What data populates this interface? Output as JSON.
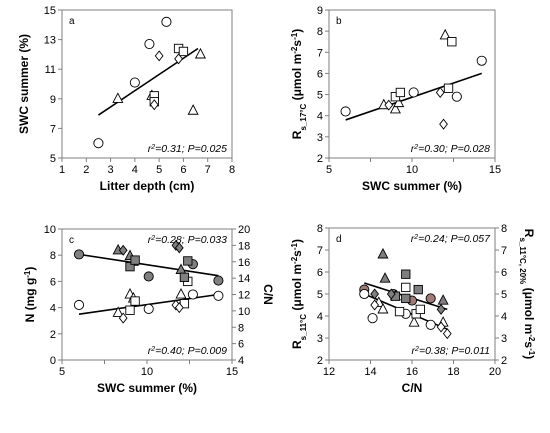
{
  "chart_data": [
    {
      "panel": "a",
      "type": "scatter",
      "xlabel": "Litter depth (cm)",
      "ylabel": "SWC summer (%)",
      "xlim": [
        1,
        8
      ],
      "ylim": [
        5,
        15
      ],
      "xticks": [
        1,
        2,
        3,
        4,
        5,
        6,
        7,
        8
      ],
      "yticks": [
        5,
        7,
        9,
        11,
        13,
        15
      ],
      "annotation": "r2=0.31; P=0.025",
      "annotation_pos": "bottom-right",
      "points": [
        {
          "x": 2.5,
          "y": 6.0,
          "marker": "circle"
        },
        {
          "x": 4.0,
          "y": 10.1,
          "marker": "circle"
        },
        {
          "x": 4.6,
          "y": 12.7,
          "marker": "circle"
        },
        {
          "x": 5.3,
          "y": 14.2,
          "marker": "circle"
        },
        {
          "x": 3.3,
          "y": 9.0,
          "marker": "triangle"
        },
        {
          "x": 6.4,
          "y": 8.2,
          "marker": "triangle"
        },
        {
          "x": 6.7,
          "y": 12.0,
          "marker": "triangle"
        },
        {
          "x": 4.7,
          "y": 9.2,
          "marker": "triangle"
        },
        {
          "x": 4.8,
          "y": 9.2,
          "marker": "square"
        },
        {
          "x": 4.8,
          "y": 8.8,
          "marker": "square"
        },
        {
          "x": 5.8,
          "y": 12.4,
          "marker": "square"
        },
        {
          "x": 6.0,
          "y": 12.2,
          "marker": "square"
        },
        {
          "x": 4.8,
          "y": 8.6,
          "marker": "diamond"
        },
        {
          "x": 5.0,
          "y": 11.9,
          "marker": "diamond"
        },
        {
          "x": 5.8,
          "y": 11.7,
          "marker": "diamond"
        }
      ],
      "trendlines": [
        {
          "x": [
            2.5,
            6.6
          ],
          "y": [
            7.9,
            12.4
          ]
        }
      ]
    },
    {
      "panel": "b",
      "type": "scatter",
      "xlabel": "SWC summer (%)",
      "ylabel": "Rs_17°C (μmol m-2s-1)",
      "ylabel_main": "R",
      "ylabel_sub": "s_17°C",
      "ylabel_unit": "(μmol m",
      "ylabel_sup1": "-2",
      "ylabel_mid": "s",
      "ylabel_sup2": "-1",
      "ylabel_end": ")",
      "xlim": [
        5,
        15
      ],
      "ylim": [
        2,
        9
      ],
      "xticks": [
        5,
        7.5,
        10,
        12.5,
        15
      ],
      "xtick_labels": [
        "5",
        "",
        "10",
        "",
        "15"
      ],
      "xtick_labels_real": [
        "5",
        "10",
        "15"
      ],
      "yticks": [
        2,
        3,
        4,
        5,
        6,
        7,
        8,
        9
      ],
      "annotation": "r2=0.30; P=0.028",
      "annotation_pos": "bottom-right",
      "points": [
        {
          "x": 6.0,
          "y": 4.2,
          "marker": "circle"
        },
        {
          "x": 10.1,
          "y": 5.1,
          "marker": "circle"
        },
        {
          "x": 12.7,
          "y": 4.9,
          "marker": "circle"
        },
        {
          "x": 14.2,
          "y": 6.6,
          "marker": "circle"
        },
        {
          "x": 8.3,
          "y": 4.5,
          "marker": "triangle"
        },
        {
          "x": 9.0,
          "y": 4.3,
          "marker": "triangle"
        },
        {
          "x": 9.2,
          "y": 4.6,
          "marker": "triangle"
        },
        {
          "x": 12.0,
          "y": 7.8,
          "marker": "triangle"
        },
        {
          "x": 9.0,
          "y": 4.9,
          "marker": "square"
        },
        {
          "x": 9.3,
          "y": 5.1,
          "marker": "square"
        },
        {
          "x": 12.2,
          "y": 5.3,
          "marker": "square"
        },
        {
          "x": 12.4,
          "y": 7.5,
          "marker": "square"
        },
        {
          "x": 8.6,
          "y": 4.5,
          "marker": "diamond"
        },
        {
          "x": 11.7,
          "y": 5.1,
          "marker": "diamond"
        },
        {
          "x": 11.9,
          "y": 3.6,
          "marker": "diamond"
        }
      ],
      "trendlines": [
        {
          "x": [
            6.0,
            14.2
          ],
          "y": [
            3.8,
            6.0
          ]
        }
      ]
    },
    {
      "panel": "c",
      "type": "scatter",
      "xlabel": "SWC summer (%)",
      "ylabel": "N (mg g-1)",
      "ylabel_main": "N (mg g",
      "ylabel_sup": "-1",
      "ylabel_end": ")",
      "ylabel_right": "C/N",
      "xlim": [
        5,
        15
      ],
      "ylim": [
        0,
        10
      ],
      "ylim_right": [
        4,
        20
      ],
      "xticks": [
        5,
        7.5,
        10,
        12.5,
        15
      ],
      "xtick_labels": [
        "5",
        "",
        "10",
        "",
        "15"
      ],
      "xtick_labels_real": [
        "5",
        "10",
        "15"
      ],
      "yticks": [
        0,
        2,
        4,
        6,
        8,
        10
      ],
      "yticks_right": [
        4,
        6,
        8,
        10,
        12,
        14,
        16,
        18,
        20
      ],
      "annotations": [
        {
          "text": "r2=0.28; P=0.033",
          "pos": "top-right"
        },
        {
          "text": "r2=0.40; P=0.009",
          "pos": "bottom-right"
        }
      ],
      "points_N": [
        {
          "x": 6.0,
          "y": 4.2,
          "marker": "circle"
        },
        {
          "x": 10.1,
          "y": 3.9,
          "marker": "circle"
        },
        {
          "x": 12.7,
          "y": 5.0,
          "marker": "circle"
        },
        {
          "x": 14.2,
          "y": 4.9,
          "marker": "circle"
        },
        {
          "x": 8.3,
          "y": 3.6,
          "marker": "triangle"
        },
        {
          "x": 9.0,
          "y": 5.0,
          "marker": "triangle"
        },
        {
          "x": 9.2,
          "y": 4.7,
          "marker": "triangle"
        },
        {
          "x": 12.0,
          "y": 5.0,
          "marker": "triangle"
        },
        {
          "x": 9.0,
          "y": 3.8,
          "marker": "square"
        },
        {
          "x": 9.3,
          "y": 4.5,
          "marker": "square"
        },
        {
          "x": 12.2,
          "y": 4.3,
          "marker": "square"
        },
        {
          "x": 12.4,
          "y": 6.0,
          "marker": "square"
        },
        {
          "x": 8.6,
          "y": 3.2,
          "marker": "diamond"
        },
        {
          "x": 11.7,
          "y": 4.2,
          "marker": "diamond"
        },
        {
          "x": 11.9,
          "y": 4.0,
          "marker": "diamond"
        }
      ],
      "points_CN": [
        {
          "x": 6.0,
          "y": 16.9,
          "marker": "circle"
        },
        {
          "x": 10.1,
          "y": 14.2,
          "marker": "circle"
        },
        {
          "x": 12.7,
          "y": 15.7,
          "marker": "circle"
        },
        {
          "x": 14.2,
          "y": 13.7,
          "marker": "circle"
        },
        {
          "x": 8.3,
          "y": 17.4,
          "marker": "triangle"
        },
        {
          "x": 9.0,
          "y": 16.7,
          "marker": "triangle"
        },
        {
          "x": 9.2,
          "y": 16.0,
          "marker": "triangle"
        },
        {
          "x": 12.0,
          "y": 15.0,
          "marker": "triangle"
        },
        {
          "x": 9.0,
          "y": 15.4,
          "marker": "square"
        },
        {
          "x": 9.3,
          "y": 16.2,
          "marker": "square"
        },
        {
          "x": 12.2,
          "y": 14.1,
          "marker": "square"
        },
        {
          "x": 12.4,
          "y": 16.1,
          "marker": "square"
        },
        {
          "x": 8.6,
          "y": 17.4,
          "marker": "diamond"
        },
        {
          "x": 11.7,
          "y": 18.0,
          "marker": "diamond"
        },
        {
          "x": 11.9,
          "y": 17.7,
          "marker": "diamond"
        }
      ],
      "trendline_N": {
        "x": [
          6.0,
          14.2
        ],
        "y": [
          3.5,
          5.0
        ]
      },
      "trendline_CN": {
        "x": [
          6.0,
          14.2
        ],
        "y": [
          16.9,
          14.3
        ]
      }
    },
    {
      "panel": "d",
      "type": "scatter",
      "xlabel": "C/N",
      "ylabel": "Rs_11°C (μmol m-2s-1)",
      "ylabel_main": "R",
      "ylabel_sub": "s_11°C",
      "ylabel_unit": "(μmol m",
      "ylabel_sup1": "-2",
      "ylabel_mid": "s",
      "ylabel_sup2": "-1",
      "ylabel_end": ")",
      "ylabel_right": "Rs_11°C, 20% (μmol m-2s-1)",
      "ylabel_right_main": "R",
      "ylabel_right_sub": "s_11°C, 20%",
      "ylabel_right_unit": "(μmol m",
      "ylabel_right_sup1": "-2",
      "ylabel_right_mid": "s",
      "ylabel_right_sup2": "-1",
      "ylabel_right_end": ")",
      "xlim": [
        12,
        20
      ],
      "ylim": [
        2,
        8
      ],
      "ylim_right": [
        2,
        8
      ],
      "xticks": [
        12,
        14,
        16,
        18,
        20
      ],
      "yticks": [
        2,
        3,
        4,
        5,
        6,
        7,
        8
      ],
      "yticks_right": [
        2,
        3,
        4,
        5,
        6,
        7,
        8
      ],
      "annotations": [
        {
          "text": "r2=0.24; P=0.057",
          "pos": "top-right"
        },
        {
          "text": "r2=0.38; P=0.011",
          "pos": "bottom-right"
        }
      ],
      "points_open": [
        {
          "x": 13.7,
          "y": 5.0,
          "marker": "circle"
        },
        {
          "x": 14.1,
          "y": 3.9,
          "marker": "circle"
        },
        {
          "x": 15.7,
          "y": 4.1,
          "marker": "circle"
        },
        {
          "x": 16.9,
          "y": 3.6,
          "marker": "circle"
        },
        {
          "x": 14.4,
          "y": 4.6,
          "marker": "triangle"
        },
        {
          "x": 14.6,
          "y": 4.3,
          "marker": "triangle"
        },
        {
          "x": 16.1,
          "y": 3.7,
          "marker": "triangle"
        },
        {
          "x": 17.5,
          "y": 3.7,
          "marker": "triangle"
        },
        {
          "x": 15.4,
          "y": 4.2,
          "marker": "square"
        },
        {
          "x": 15.7,
          "y": 5.3,
          "marker": "square"
        },
        {
          "x": 16.2,
          "y": 4.1,
          "marker": "square"
        },
        {
          "x": 16.4,
          "y": 4.3,
          "marker": "square"
        },
        {
          "x": 14.2,
          "y": 4.5,
          "marker": "diamond"
        },
        {
          "x": 17.4,
          "y": 3.5,
          "marker": "diamond"
        },
        {
          "x": 17.7,
          "y": 3.2,
          "marker": "diamond"
        }
      ],
      "points_filled": [
        {
          "x": 13.7,
          "y": 5.2,
          "marker": "circle"
        },
        {
          "x": 15.1,
          "y": 5.0,
          "marker": "circle"
        },
        {
          "x": 16.0,
          "y": 4.7,
          "marker": "circle"
        },
        {
          "x": 16.9,
          "y": 4.8,
          "marker": "circle"
        },
        {
          "x": 14.6,
          "y": 6.8,
          "marker": "triangle"
        },
        {
          "x": 14.7,
          "y": 5.7,
          "marker": "triangle"
        },
        {
          "x": 15.2,
          "y": 4.9,
          "marker": "triangle"
        },
        {
          "x": 17.5,
          "y": 4.7,
          "marker": "triangle"
        },
        {
          "x": 15.7,
          "y": 5.9,
          "marker": "square"
        },
        {
          "x": 15.7,
          "y": 4.8,
          "marker": "square"
        },
        {
          "x": 16.3,
          "y": 5.2,
          "marker": "square"
        },
        {
          "x": 15.2,
          "y": 4.9,
          "marker": "square"
        },
        {
          "x": 14.2,
          "y": 5.0,
          "marker": "diamond"
        },
        {
          "x": 17.4,
          "y": 4.3,
          "marker": "diamond"
        },
        {
          "x": 15.0,
          "y": 5.0,
          "marker": "diamond"
        }
      ],
      "trendline_open": {
        "x": [
          13.7,
          17.7
        ],
        "y": [
          5.0,
          3.4
        ]
      },
      "trendline_filled": {
        "x": [
          13.7,
          17.7
        ],
        "y": [
          5.5,
          4.3
        ]
      }
    }
  ],
  "colors": {
    "axis": "#7f7f7f",
    "marker_stroke": "#000000",
    "filled_gray": "#7f7f7f",
    "filled_brown": "#9e7b76",
    "open_fill": "#ffffff"
  }
}
